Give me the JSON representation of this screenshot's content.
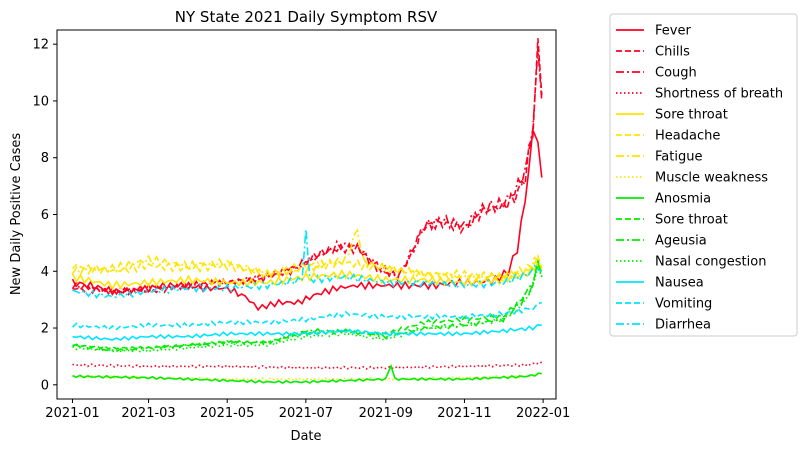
{
  "chart_data": {
    "type": "line",
    "title": "NY State 2021 Daily Symptom RSV",
    "xlabel": "Date",
    "ylabel": "New Daily Positive Cases",
    "x_range": [
      "2020-12-20",
      "2022-01-11"
    ],
    "ylim": [
      -0.5,
      12.5
    ],
    "x_ticks": [
      "2021-01",
      "2021-03",
      "2021-05",
      "2021-07",
      "2021-09",
      "2021-11",
      "2022-01"
    ],
    "y_ticks": [
      0,
      2,
      4,
      6,
      8,
      10,
      12
    ],
    "grid": false,
    "legend_position": "outside-right",
    "series": [
      {
        "name": "Fever",
        "color": "#ff0022",
        "dash": "solid",
        "points": [
          [
            "2021-01-01",
            3.6
          ],
          [
            "2021-01-15",
            3.5
          ],
          [
            "2021-02-01",
            3.3
          ],
          [
            "2021-02-15",
            3.3
          ],
          [
            "2021-03-01",
            3.4
          ],
          [
            "2021-03-15",
            3.5
          ],
          [
            "2021-04-01",
            3.5
          ],
          [
            "2021-04-15",
            3.4
          ],
          [
            "2021-05-01",
            3.4
          ],
          [
            "2021-05-15",
            3.1
          ],
          [
            "2021-05-25",
            2.7
          ],
          [
            "2021-06-10",
            2.9
          ],
          [
            "2021-06-25",
            2.9
          ],
          [
            "2021-07-10",
            3.2
          ],
          [
            "2021-07-25",
            3.4
          ],
          [
            "2021-08-10",
            3.5
          ],
          [
            "2021-08-25",
            3.5
          ],
          [
            "2021-09-10",
            3.5
          ],
          [
            "2021-09-25",
            3.5
          ],
          [
            "2021-10-10",
            3.5
          ],
          [
            "2021-10-25",
            3.6
          ],
          [
            "2021-11-10",
            3.6
          ],
          [
            "2021-11-25",
            3.7
          ],
          [
            "2021-12-05",
            4.0
          ],
          [
            "2021-12-12",
            4.8
          ],
          [
            "2021-12-18",
            6.5
          ],
          [
            "2021-12-24",
            8.8
          ],
          [
            "2021-12-28",
            8.6
          ],
          [
            "2021-12-31",
            7.3
          ]
        ]
      },
      {
        "name": "Chills",
        "color": "#ff0022",
        "dash": "dashed",
        "points": [
          [
            "2021-01-01",
            3.4
          ],
          [
            "2021-02-01",
            3.3
          ],
          [
            "2021-03-01",
            3.3
          ],
          [
            "2021-04-01",
            3.5
          ],
          [
            "2021-05-01",
            3.6
          ],
          [
            "2021-06-01",
            3.8
          ],
          [
            "2021-06-25",
            4.1
          ],
          [
            "2021-07-10",
            4.6
          ],
          [
            "2021-07-25",
            4.8
          ],
          [
            "2021-08-10",
            4.8
          ],
          [
            "2021-08-25",
            4.2
          ],
          [
            "2021-09-10",
            3.8
          ],
          [
            "2021-09-20",
            4.5
          ],
          [
            "2021-10-01",
            5.6
          ],
          [
            "2021-10-15",
            5.7
          ],
          [
            "2021-11-01",
            5.5
          ],
          [
            "2021-11-15",
            6.1
          ],
          [
            "2021-12-01",
            6.3
          ],
          [
            "2021-12-10",
            6.6
          ],
          [
            "2021-12-18",
            7.3
          ],
          [
            "2021-12-24",
            9.0
          ],
          [
            "2021-12-28",
            11.8
          ],
          [
            "2021-12-31",
            10.2
          ]
        ]
      },
      {
        "name": "Cough",
        "color": "#ff0022",
        "dash": "dashdot",
        "points": [
          [
            "2021-01-01",
            3.5
          ],
          [
            "2021-02-01",
            3.3
          ],
          [
            "2021-03-01",
            3.4
          ],
          [
            "2021-04-01",
            3.5
          ],
          [
            "2021-05-01",
            3.6
          ],
          [
            "2021-06-01",
            3.8
          ],
          [
            "2021-06-25",
            4.2
          ],
          [
            "2021-07-10",
            4.5
          ],
          [
            "2021-07-25",
            4.9
          ],
          [
            "2021-08-10",
            4.9
          ],
          [
            "2021-08-25",
            4.1
          ],
          [
            "2021-09-10",
            3.8
          ],
          [
            "2021-09-20",
            4.6
          ],
          [
            "2021-10-01",
            5.6
          ],
          [
            "2021-10-15",
            5.8
          ],
          [
            "2021-11-01",
            5.6
          ],
          [
            "2021-11-15",
            6.2
          ],
          [
            "2021-12-01",
            6.4
          ],
          [
            "2021-12-10",
            6.8
          ],
          [
            "2021-12-18",
            7.5
          ],
          [
            "2021-12-24",
            9.1
          ],
          [
            "2021-12-28",
            11.9
          ],
          [
            "2021-12-31",
            10.0
          ]
        ]
      },
      {
        "name": "Shortness of breath",
        "color": "#ff0022",
        "dash": "dotted",
        "points": [
          [
            "2021-01-01",
            0.7
          ],
          [
            "2021-03-01",
            0.65
          ],
          [
            "2021-05-01",
            0.65
          ],
          [
            "2021-07-01",
            0.6
          ],
          [
            "2021-09-01",
            0.6
          ],
          [
            "2021-11-01",
            0.65
          ],
          [
            "2021-12-20",
            0.7
          ],
          [
            "2021-12-31",
            0.8
          ]
        ]
      },
      {
        "name": "Sore throat",
        "color": "#ffe500",
        "dash": "solid",
        "points": [
          [
            "2021-01-01",
            3.8
          ],
          [
            "2021-02-01",
            3.5
          ],
          [
            "2021-03-01",
            3.6
          ],
          [
            "2021-04-01",
            3.7
          ],
          [
            "2021-05-01",
            3.6
          ],
          [
            "2021-06-01",
            3.6
          ],
          [
            "2021-07-01",
            3.8
          ],
          [
            "2021-08-01",
            3.9
          ],
          [
            "2021-09-01",
            3.7
          ],
          [
            "2021-10-01",
            3.7
          ],
          [
            "2021-11-01",
            3.6
          ],
          [
            "2021-12-01",
            3.7
          ],
          [
            "2021-12-20",
            3.9
          ],
          [
            "2021-12-28",
            4.3
          ],
          [
            "2021-12-31",
            4.0
          ]
        ]
      },
      {
        "name": "Headache",
        "color": "#ffe500",
        "dash": "dashed",
        "points": [
          [
            "2021-01-01",
            4.2
          ],
          [
            "2021-02-01",
            4.0
          ],
          [
            "2021-03-01",
            4.2
          ],
          [
            "2021-04-01",
            4.1
          ],
          [
            "2021-05-01",
            4.2
          ],
          [
            "2021-06-01",
            3.9
          ],
          [
            "2021-07-01",
            4.2
          ],
          [
            "2021-08-01",
            4.3
          ],
          [
            "2021-09-01",
            4.1
          ],
          [
            "2021-10-01",
            3.9
          ],
          [
            "2021-11-01",
            3.9
          ],
          [
            "2021-12-01",
            3.8
          ],
          [
            "2021-12-20",
            4.1
          ],
          [
            "2021-12-28",
            4.4
          ],
          [
            "2021-12-31",
            4.1
          ]
        ]
      },
      {
        "name": "Fatigue",
        "color": "#ffe500",
        "dash": "dashdot",
        "points": [
          [
            "2021-01-01",
            4.0
          ],
          [
            "2021-02-01",
            4.1
          ],
          [
            "2021-03-01",
            4.4
          ],
          [
            "2021-04-01",
            4.2
          ],
          [
            "2021-05-01",
            4.3
          ],
          [
            "2021-06-01",
            3.9
          ],
          [
            "2021-07-01",
            4.1
          ],
          [
            "2021-08-01",
            4.4
          ],
          [
            "2021-08-10",
            5.5
          ],
          [
            "2021-08-15",
            4.3
          ],
          [
            "2021-09-01",
            4.1
          ],
          [
            "2021-10-01",
            3.9
          ],
          [
            "2021-11-01",
            3.8
          ],
          [
            "2021-12-01",
            3.8
          ],
          [
            "2021-12-20",
            4.0
          ],
          [
            "2021-12-28",
            4.5
          ],
          [
            "2021-12-31",
            4.1
          ]
        ]
      },
      {
        "name": "Muscle weakness",
        "color": "#ffe500",
        "dash": "dotted",
        "points": [
          [
            "2021-01-01",
            0.3
          ],
          [
            "2021-03-01",
            0.25
          ],
          [
            "2021-05-01",
            0.2
          ],
          [
            "2021-07-01",
            0.2
          ],
          [
            "2021-09-01",
            0.2
          ],
          [
            "2021-11-01",
            0.25
          ],
          [
            "2021-12-20",
            0.3
          ],
          [
            "2021-12-31",
            0.4
          ]
        ]
      },
      {
        "name": "Anosmia",
        "color": "#00ee00",
        "dash": "solid",
        "points": [
          [
            "2021-01-01",
            0.3
          ],
          [
            "2021-03-01",
            0.25
          ],
          [
            "2021-05-01",
            0.15
          ],
          [
            "2021-06-01",
            0.1
          ],
          [
            "2021-07-01",
            0.1
          ],
          [
            "2021-09-01",
            0.2
          ],
          [
            "2021-09-05",
            0.7
          ],
          [
            "2021-09-08",
            0.2
          ],
          [
            "2021-11-01",
            0.2
          ],
          [
            "2021-12-20",
            0.3
          ],
          [
            "2021-12-31",
            0.4
          ]
        ]
      },
      {
        "name": "Sore throat",
        "color": "#00ee00",
        "dash": "dashed",
        "points": [
          [
            "2021-01-01",
            1.4
          ],
          [
            "2021-02-01",
            1.3
          ],
          [
            "2021-03-01",
            1.3
          ],
          [
            "2021-04-01",
            1.4
          ],
          [
            "2021-05-01",
            1.5
          ],
          [
            "2021-06-01",
            1.5
          ],
          [
            "2021-07-01",
            1.8
          ],
          [
            "2021-08-01",
            1.9
          ],
          [
            "2021-09-01",
            1.8
          ],
          [
            "2021-10-01",
            2.2
          ],
          [
            "2021-11-01",
            2.3
          ],
          [
            "2021-12-01",
            2.4
          ],
          [
            "2021-12-15",
            3.0
          ],
          [
            "2021-12-24",
            3.6
          ],
          [
            "2021-12-28",
            4.3
          ],
          [
            "2021-12-31",
            3.8
          ]
        ]
      },
      {
        "name": "Ageusia",
        "color": "#00ee00",
        "dash": "dashdot",
        "points": [
          [
            "2021-01-01",
            1.4
          ],
          [
            "2021-02-01",
            1.2
          ],
          [
            "2021-03-01",
            1.3
          ],
          [
            "2021-04-01",
            1.4
          ],
          [
            "2021-05-01",
            1.5
          ],
          [
            "2021-06-01",
            1.5
          ],
          [
            "2021-07-01",
            1.9
          ],
          [
            "2021-08-01",
            1.9
          ],
          [
            "2021-09-01",
            1.7
          ],
          [
            "2021-10-01",
            2.0
          ],
          [
            "2021-11-01",
            2.1
          ],
          [
            "2021-12-01",
            2.3
          ],
          [
            "2021-12-15",
            2.9
          ],
          [
            "2021-12-24",
            3.5
          ],
          [
            "2021-12-28",
            4.4
          ],
          [
            "2021-12-31",
            3.9
          ]
        ]
      },
      {
        "name": "Nasal congestion",
        "color": "#00ee00",
        "dash": "dotted",
        "points": [
          [
            "2021-01-01",
            1.3
          ],
          [
            "2021-02-01",
            1.2
          ],
          [
            "2021-03-01",
            1.2
          ],
          [
            "2021-04-01",
            1.3
          ],
          [
            "2021-05-01",
            1.4
          ],
          [
            "2021-06-01",
            1.4
          ],
          [
            "2021-07-01",
            1.7
          ],
          [
            "2021-08-01",
            1.8
          ],
          [
            "2021-09-01",
            1.6
          ],
          [
            "2021-10-01",
            2.0
          ],
          [
            "2021-11-01",
            2.1
          ],
          [
            "2021-12-01",
            2.3
          ],
          [
            "2021-12-15",
            2.8
          ],
          [
            "2021-12-24",
            3.4
          ],
          [
            "2021-12-28",
            4.2
          ],
          [
            "2021-12-31",
            3.8
          ]
        ]
      },
      {
        "name": "Nausea",
        "color": "#00e5ff",
        "dash": "solid",
        "points": [
          [
            "2021-01-01",
            1.7
          ],
          [
            "2021-02-01",
            1.6
          ],
          [
            "2021-03-01",
            1.7
          ],
          [
            "2021-04-01",
            1.7
          ],
          [
            "2021-05-01",
            1.8
          ],
          [
            "2021-06-01",
            1.8
          ],
          [
            "2021-07-01",
            1.8
          ],
          [
            "2021-08-01",
            1.9
          ],
          [
            "2021-09-01",
            1.8
          ],
          [
            "2021-10-01",
            1.8
          ],
          [
            "2021-11-01",
            1.8
          ],
          [
            "2021-12-01",
            1.9
          ],
          [
            "2021-12-24",
            2.0
          ],
          [
            "2021-12-31",
            2.1
          ]
        ]
      },
      {
        "name": "Vomiting",
        "color": "#00e5ff",
        "dash": "dashed",
        "points": [
          [
            "2021-01-01",
            2.1
          ],
          [
            "2021-02-01",
            2.0
          ],
          [
            "2021-03-01",
            2.1
          ],
          [
            "2021-04-01",
            2.1
          ],
          [
            "2021-05-01",
            2.2
          ],
          [
            "2021-06-01",
            2.2
          ],
          [
            "2021-07-01",
            2.3
          ],
          [
            "2021-08-01",
            2.5
          ],
          [
            "2021-09-01",
            2.4
          ],
          [
            "2021-10-01",
            2.4
          ],
          [
            "2021-11-01",
            2.4
          ],
          [
            "2021-12-01",
            2.5
          ],
          [
            "2021-12-24",
            2.7
          ],
          [
            "2021-12-31",
            2.9
          ]
        ]
      },
      {
        "name": "Diarrhea",
        "color": "#00e5ff",
        "dash": "dashdot",
        "points": [
          [
            "2021-01-01",
            3.3
          ],
          [
            "2021-02-01",
            3.1
          ],
          [
            "2021-03-01",
            3.3
          ],
          [
            "2021-04-01",
            3.4
          ],
          [
            "2021-05-01",
            3.4
          ],
          [
            "2021-06-01",
            3.5
          ],
          [
            "2021-06-28",
            3.7
          ],
          [
            "2021-07-01",
            5.5
          ],
          [
            "2021-07-04",
            3.7
          ],
          [
            "2021-08-01",
            3.8
          ],
          [
            "2021-09-01",
            3.6
          ],
          [
            "2021-10-01",
            3.6
          ],
          [
            "2021-11-01",
            3.5
          ],
          [
            "2021-12-01",
            3.6
          ],
          [
            "2021-12-20",
            3.9
          ],
          [
            "2021-12-28",
            4.2
          ],
          [
            "2021-12-31",
            4.0
          ]
        ]
      }
    ]
  }
}
